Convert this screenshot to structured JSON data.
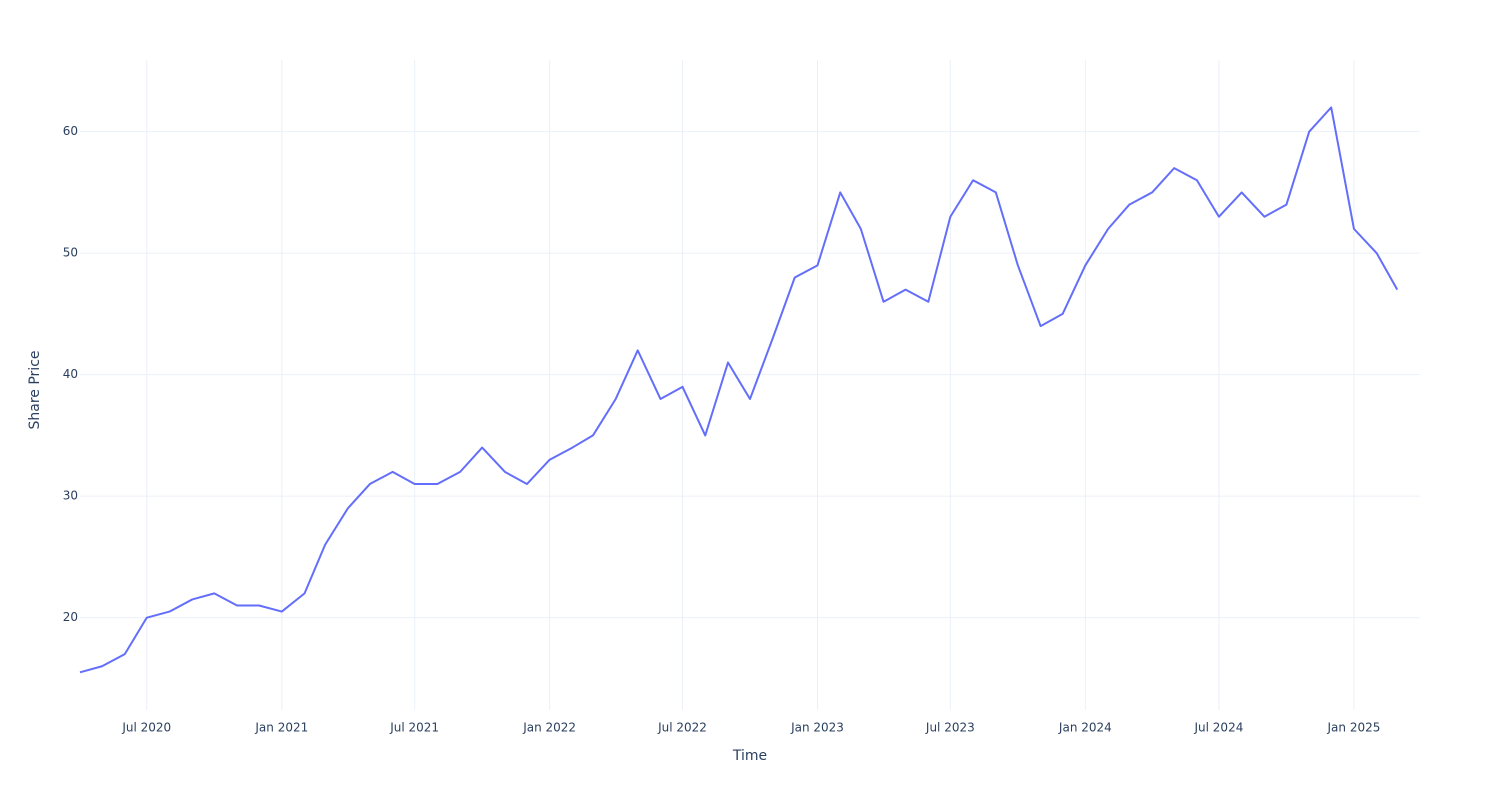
{
  "chart_data": {
    "type": "line",
    "x_label": "Time",
    "y_label": "Share Price",
    "x": [
      "2020-04",
      "2020-05",
      "2020-06",
      "2020-07",
      "2020-08",
      "2020-09",
      "2020-10",
      "2020-11",
      "2020-12",
      "2021-01",
      "2021-02",
      "2021-03",
      "2021-04",
      "2021-05",
      "2021-06",
      "2021-07",
      "2021-08",
      "2021-09",
      "2021-10",
      "2021-11",
      "2021-12",
      "2022-01",
      "2022-02",
      "2022-03",
      "2022-04",
      "2022-05",
      "2022-06",
      "2022-07",
      "2022-08",
      "2022-09",
      "2022-10",
      "2022-11",
      "2022-12",
      "2023-01",
      "2023-02",
      "2023-03",
      "2023-04",
      "2023-05",
      "2023-06",
      "2023-07",
      "2023-08",
      "2023-09",
      "2023-10",
      "2023-11",
      "2023-12",
      "2024-01",
      "2024-02",
      "2024-03",
      "2024-04",
      "2024-05",
      "2024-06",
      "2024-07",
      "2024-08",
      "2024-09",
      "2024-10",
      "2024-11",
      "2024-12",
      "2025-01",
      "2025-02",
      "2025-03"
    ],
    "series": [
      {
        "name": "Share Price",
        "color": "#636efa",
        "values": [
          15.5,
          16,
          17,
          20,
          20.5,
          21.5,
          22,
          21,
          21,
          20.5,
          22,
          26,
          29,
          31,
          32,
          31,
          31,
          32,
          34,
          32,
          31,
          33,
          34,
          35,
          38,
          42,
          38,
          39,
          35,
          41,
          38,
          43,
          48,
          49,
          55,
          52,
          46,
          47,
          46,
          53,
          56,
          55,
          49,
          44,
          45,
          49,
          52,
          54,
          55,
          57,
          56,
          53,
          55,
          53,
          54,
          60,
          62,
          52,
          50,
          47
        ]
      }
    ],
    "xlim": [
      "2020-04",
      "2025-04"
    ],
    "xticks": [
      {
        "value": "2020-07",
        "label": "Jul 2020"
      },
      {
        "value": "2021-01",
        "label": "Jan 2021"
      },
      {
        "value": "2021-07",
        "label": "Jul 2021"
      },
      {
        "value": "2022-01",
        "label": "Jan 2022"
      },
      {
        "value": "2022-07",
        "label": "Jul 2022"
      },
      {
        "value": "2023-01",
        "label": "Jan 2023"
      },
      {
        "value": "2023-07",
        "label": "Jul 2023"
      },
      {
        "value": "2024-01",
        "label": "Jan 2024"
      },
      {
        "value": "2024-07",
        "label": "Jul 2024"
      },
      {
        "value": "2025-01",
        "label": "Jan 2025"
      }
    ],
    "ylim": [
      12.4,
      65.9
    ],
    "yticks": [
      20,
      30,
      40,
      50,
      60
    ],
    "grid": true
  }
}
